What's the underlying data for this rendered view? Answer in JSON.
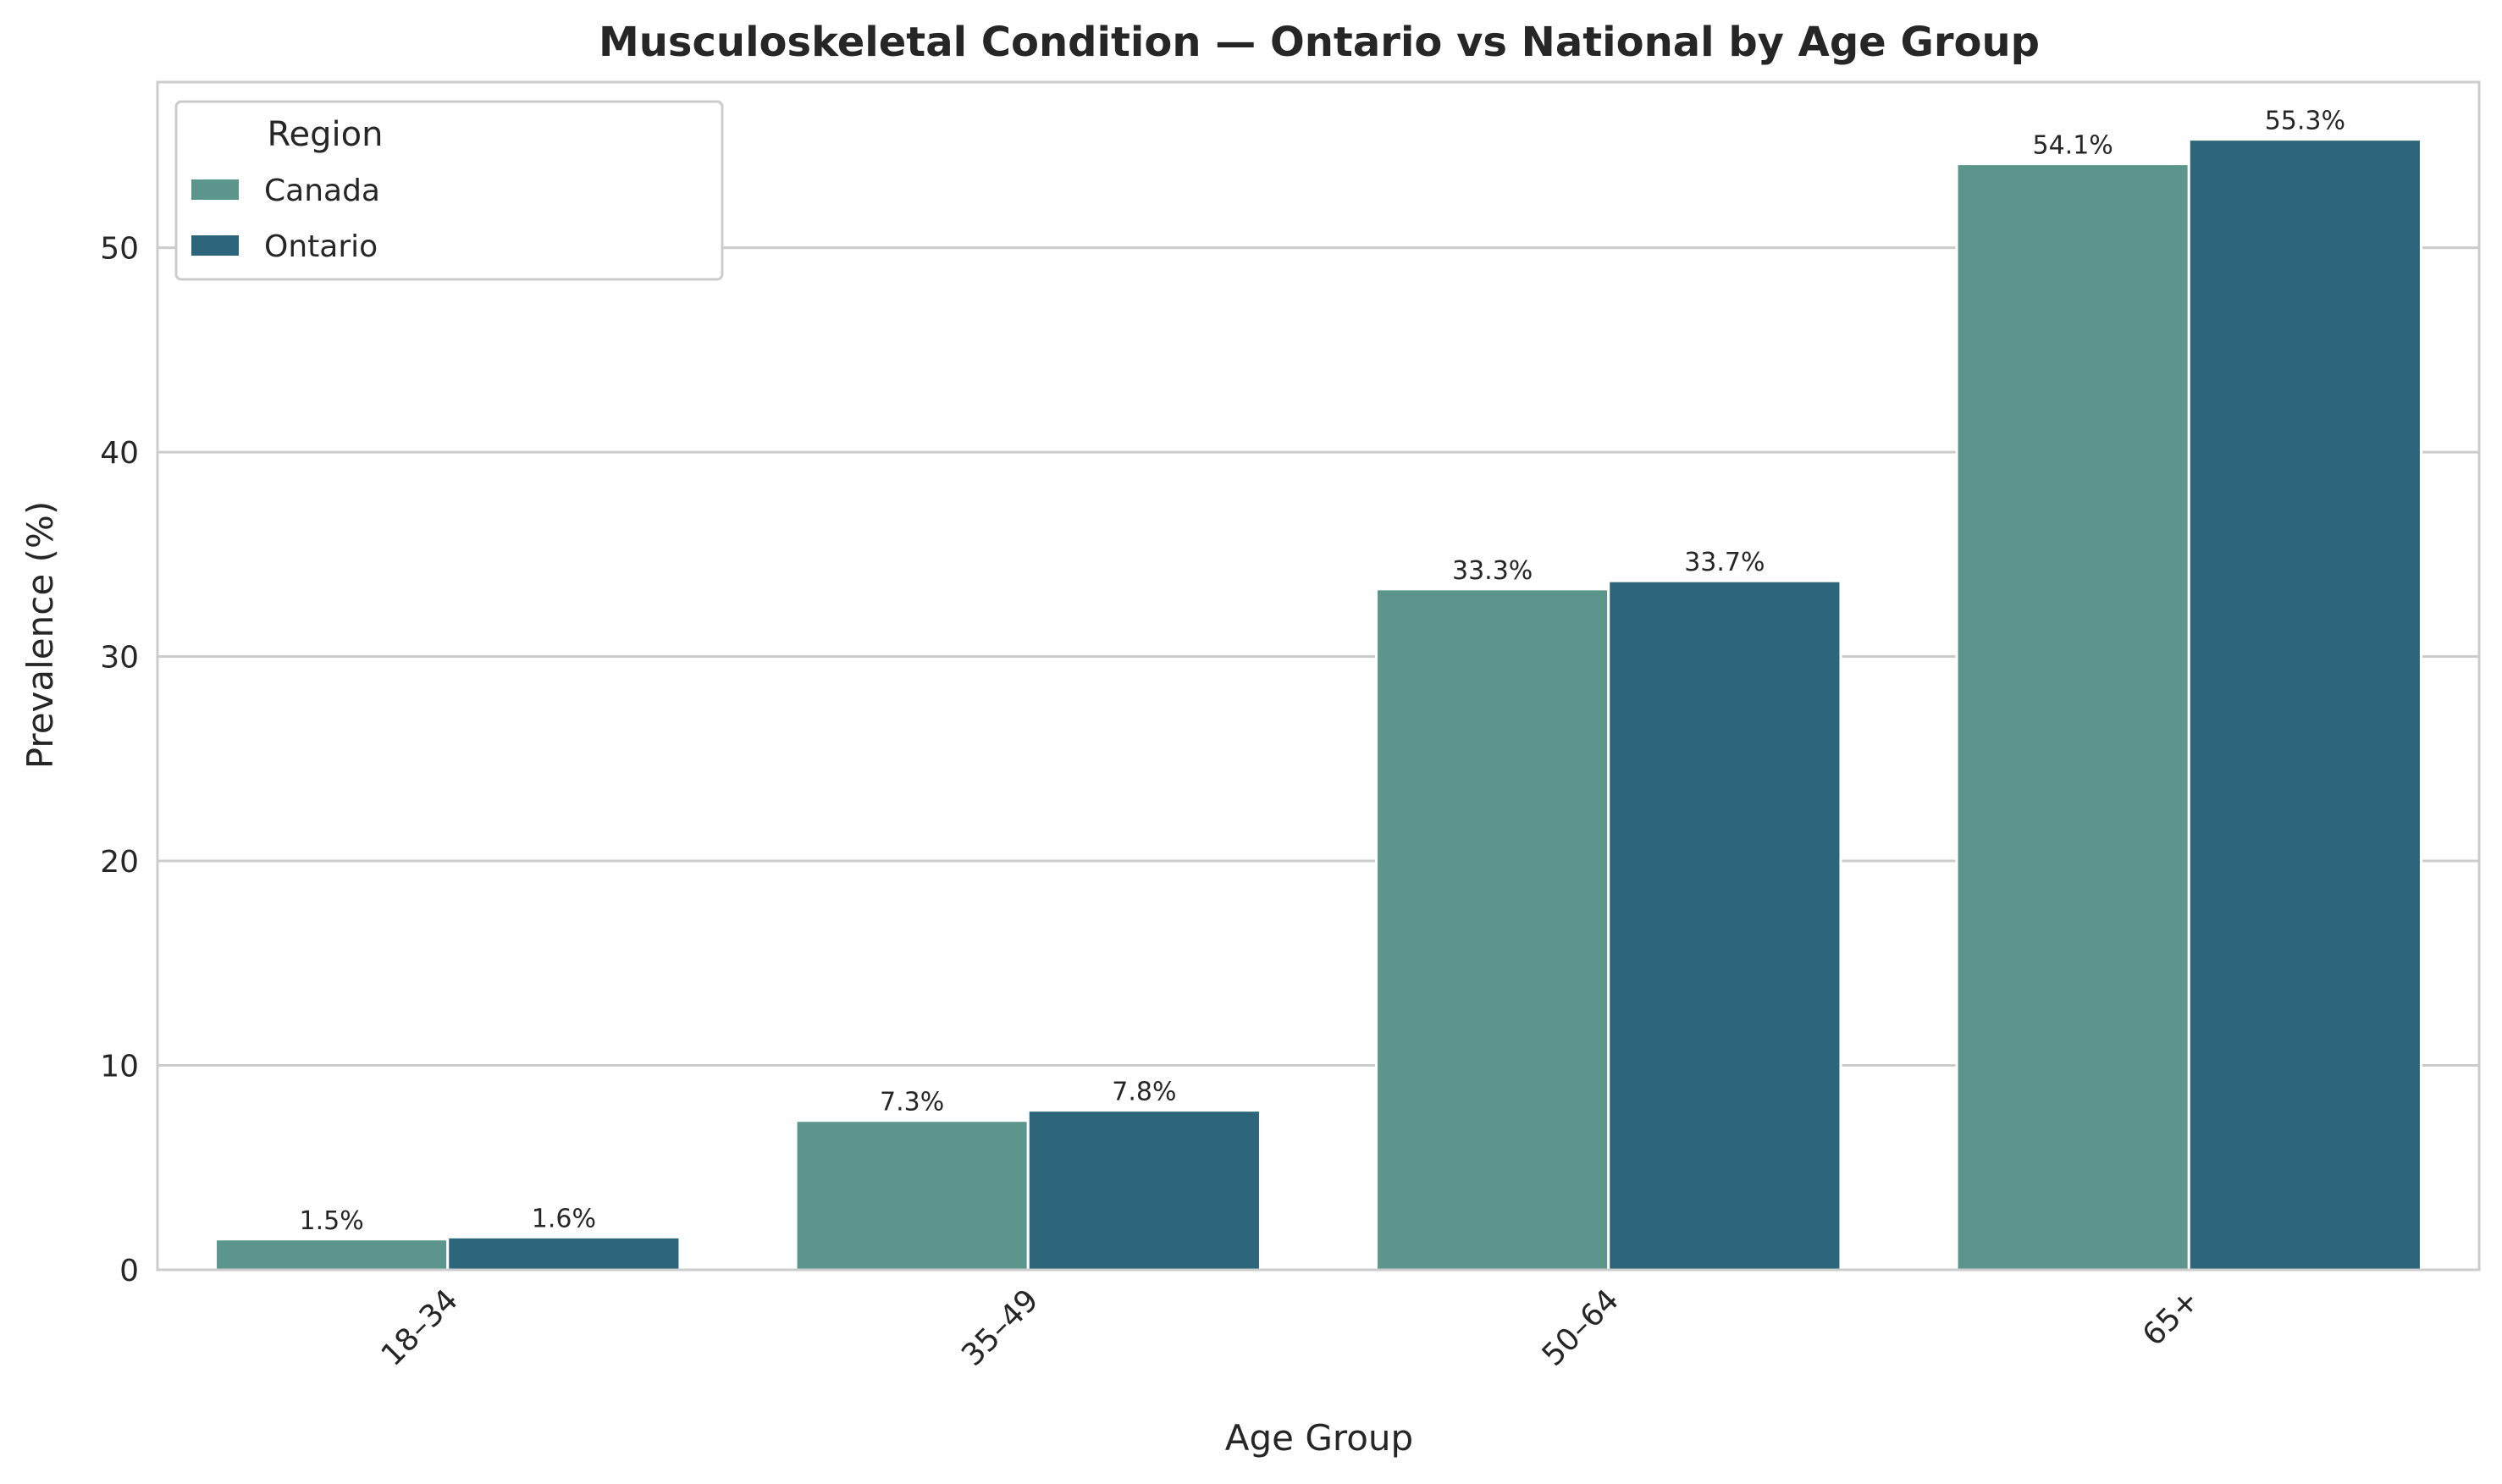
{
  "chart_data": {
    "type": "bar",
    "title": "Musculoskeletal Condition — Ontario vs National by Age Group",
    "xlabel": "Age Group",
    "ylabel": "Prevalence (%)",
    "categories": [
      "18–34",
      "35–49",
      "50–64",
      "65+"
    ],
    "series": [
      {
        "name": "Canada",
        "values": [
          1.5,
          7.3,
          33.3,
          54.1
        ],
        "labels": [
          "1.5%",
          "7.3%",
          "33.3%",
          "54.1%"
        ],
        "color": "#5b958b"
      },
      {
        "name": "Ontario",
        "values": [
          1.6,
          7.8,
          33.7,
          55.3
        ],
        "labels": [
          "1.6%",
          "7.8%",
          "33.7%",
          "55.3%"
        ],
        "color": "#2d667b"
      }
    ],
    "ylim": [
      0,
      58.1
    ],
    "yticks": [
      0,
      10,
      20,
      30,
      40,
      50
    ],
    "grid": "horizontal",
    "legend": {
      "title": "Region",
      "placement": "top-left"
    }
  }
}
